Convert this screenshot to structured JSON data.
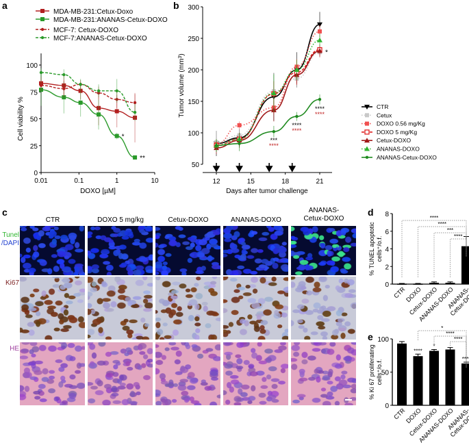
{
  "panels": {
    "a": "a",
    "b": "b",
    "c": "c",
    "d": "d",
    "e": "e"
  },
  "chart_data": [
    {
      "id": "a",
      "type": "line",
      "xscale": "log",
      "xlim": [
        0.01,
        10
      ],
      "ylim": [
        0,
        100
      ],
      "xlabel": "DOXO [µM]",
      "ylabel": "Cell viability %",
      "xticks": [
        "0.01",
        "0.1",
        "1",
        "10"
      ],
      "yticks": [
        "0",
        "25",
        "50",
        "75",
        "100"
      ],
      "x": [
        0.01,
        0.04,
        0.11,
        0.33,
        1,
        3
      ],
      "series": [
        {
          "name": "MDA-MB-231:Cetux-Doxo",
          "color": "#b21f1f",
          "style": "solid",
          "marker": "square",
          "values": [
            83,
            81,
            76,
            60,
            57,
            51
          ],
          "err": [
            6,
            10,
            8,
            16,
            15,
            23
          ]
        },
        {
          "name": "MDA-MB-231:ANANAS-Cetux-DOXO",
          "color": "#2a9a2a",
          "style": "solid",
          "marker": "square",
          "values": [
            77,
            70,
            65,
            54,
            34,
            14
          ],
          "err": [
            15,
            15,
            13,
            14,
            3,
            2
          ]
        },
        {
          "name": "MCF-7: Cetux-DOXO",
          "color": "#b21f1f",
          "style": "dashed",
          "marker": "dot",
          "values": [
            81,
            78,
            82,
            74,
            68,
            65
          ],
          "err": [
            5,
            8,
            4,
            6,
            8,
            8
          ]
        },
        {
          "name": "MCF-7:ANANAS-Cetux-DOXO",
          "color": "#2a9a2a",
          "style": "dashed",
          "marker": "dot",
          "values": [
            93,
            91,
            82,
            76,
            76,
            56
          ],
          "err": [
            4,
            5,
            5,
            6,
            11,
            8
          ]
        }
      ],
      "annotations": [
        {
          "x": 1,
          "text": "*"
        },
        {
          "x": 3,
          "text": "**"
        }
      ]
    },
    {
      "id": "b",
      "type": "line",
      "xlim": [
        12,
        21.5
      ],
      "ylim": [
        50,
        300
      ],
      "xlabel": "Days after tumor challenge",
      "ylabel": "Tumor volume (mm3)",
      "xticks": [
        "12",
        "15",
        "18",
        "21"
      ],
      "yticks": [
        "50",
        "100",
        "150",
        "200",
        "250",
        "300"
      ],
      "treatment_days": [
        12,
        14,
        16.6,
        18.6
      ],
      "x": [
        12,
        14,
        17,
        19,
        21
      ],
      "series": [
        {
          "name": "CTR",
          "color": "#000000",
          "style": "solid",
          "marker": "triangle-down",
          "values": [
            83,
            92,
            157,
            200,
            272
          ],
          "err": [
            20,
            14,
            38,
            28,
            20
          ]
        },
        {
          "name": "Cetux",
          "color": "#c8c8c8",
          "style": "dotted",
          "marker": "square",
          "values": [
            85,
            96,
            166,
            186,
            228
          ],
          "err": [
            18,
            10,
            28,
            14,
            8
          ]
        },
        {
          "name": "DOXO 0.56 mg/Kg",
          "color": "#f05050",
          "style": "dotted",
          "marker": "square",
          "values": [
            82,
            112,
            140,
            205,
            261
          ],
          "err": [
            8,
            6,
            10,
            12,
            10
          ]
        },
        {
          "name": "DOXO 5 mg/Kg",
          "color": "#e02020",
          "style": "dashed",
          "marker": "open-square",
          "values": [
            80,
            90,
            162,
            196,
            232
          ],
          "err": [
            10,
            10,
            20,
            20,
            10
          ]
        },
        {
          "name": "Cetux-DOXO",
          "color": "#a01818",
          "style": "solid",
          "marker": "triangle",
          "values": [
            76,
            88,
            136,
            192,
            230
          ],
          "err": [
            10,
            12,
            18,
            14,
            10
          ]
        },
        {
          "name": "ANANAS-DOXO",
          "color": "#2fb52f",
          "style": "dotted",
          "marker": "triangle",
          "values": [
            80,
            90,
            163,
            200,
            247
          ],
          "err": [
            10,
            10,
            30,
            16,
            10
          ]
        },
        {
          "name": "ANANAS-Cetux-DOXO",
          "color": "#1f8a1f",
          "style": "solid",
          "marker": "dot",
          "values": [
            80,
            83,
            102,
            126,
            153
          ],
          "err": [
            10,
            12,
            9,
            7,
            8
          ]
        }
      ],
      "annotations": [
        {
          "x": 21,
          "text": "*",
          "color": "#000"
        },
        {
          "x": 17,
          "text": "***",
          "color": "#000"
        },
        {
          "x": 17,
          "text": "****",
          "color": "#c02020"
        },
        {
          "x": 19,
          "text": "****",
          "color": "#000"
        },
        {
          "x": 19,
          "text": "****",
          "color": "#c02020"
        },
        {
          "x": 21,
          "text": "****",
          "color": "#000"
        },
        {
          "x": 21,
          "text": "****",
          "color": "#c02020"
        }
      ]
    },
    {
      "id": "d",
      "type": "bar",
      "categories": [
        "CTR",
        "DOXO",
        "Cetux-DOXO",
        "ANANAS-DOXO",
        "ANANAS-Cetux-DOXO"
      ],
      "values": [
        0.05,
        0.05,
        0.15,
        0.15,
        4.3
      ],
      "err": [
        0.03,
        0.03,
        0.1,
        0.1,
        1.1
      ],
      "ylim": [
        0,
        8
      ],
      "yticks": [
        "0",
        "2",
        "4",
        "6",
        "8"
      ],
      "ylabel": "% TUNEL apoptotic cells+/o.f.",
      "comparisons": [
        {
          "from": 0,
          "to": 4,
          "text": "****"
        },
        {
          "from": 1,
          "to": 4,
          "text": "****"
        },
        {
          "from": 2,
          "to": 4,
          "text": "***"
        },
        {
          "from": 3,
          "to": 4,
          "text": "****"
        }
      ]
    },
    {
      "id": "e",
      "type": "bar",
      "categories": [
        "CTR",
        "DOXO",
        "Cetux-DOXO",
        "ANANAS-DOXO",
        "ANANAS-Cetux-DOXO"
      ],
      "values": [
        93,
        74,
        82,
        84,
        63
      ],
      "err": [
        3,
        3,
        2,
        3,
        2
      ],
      "ylim": [
        0,
        100
      ],
      "yticks": [
        "0",
        "50",
        "100"
      ],
      "ylabel": "% Ki 67 proliferating cells+/o.f.",
      "bar_labels": [
        "",
        "****",
        "*",
        "",
        "****"
      ],
      "comparisons": [
        {
          "from": 1,
          "to": 4,
          "text": "*"
        },
        {
          "from": 2,
          "to": 4,
          "text": "****"
        },
        {
          "from": 3,
          "to": 4,
          "text": "****"
        }
      ]
    }
  ],
  "panel_c": {
    "columns": [
      "CTR",
      "DOXO 5 mg/kg",
      "Cetux-DOXO",
      "ANANAS-DOXO",
      "ANANAS-Cetux-DOXO"
    ],
    "columns_display": [
      "CTR",
      "DOXO 5 mg/kg",
      "Cetux-DOXO",
      "ANANAS-DOXO",
      "ANANAS-\nCetux-DOXO"
    ],
    "rows": [
      {
        "label1": "Tunel",
        "label2": "/DAPI",
        "color1": "#2fb52f",
        "color2": "#2040d0"
      },
      {
        "label1": "Ki67",
        "label2": "",
        "color1": "#7a1e1e"
      },
      {
        "label1": "HE",
        "label2": "",
        "color1": "#a040a0"
      }
    ]
  }
}
